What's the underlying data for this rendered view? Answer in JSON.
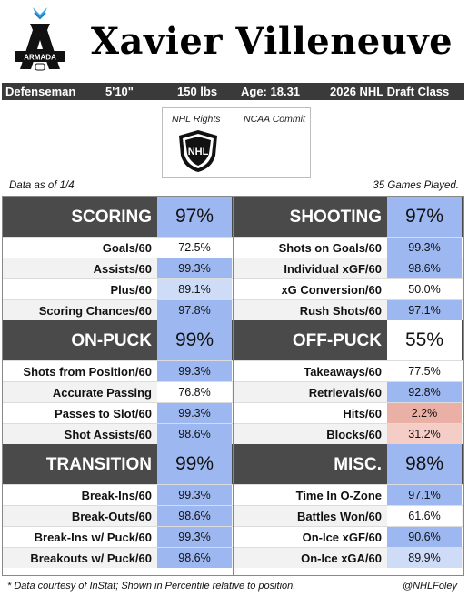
{
  "header": {
    "team_logo_text": "ARMADA",
    "player_name": "Xavier Villeneuve"
  },
  "info_bar": {
    "position": "Defenseman",
    "height": "5'10\"",
    "weight": "150 lbs",
    "age": "Age: 18.31",
    "draft_class": "2026 NHL Draft Class"
  },
  "rights": {
    "nhl_rights_label": "NHL Rights",
    "ncaa_commit_label": "NCAA Commit",
    "nhl_logo_text": "NHL"
  },
  "meta": {
    "data_as_of": "Data as of 1/4",
    "games_played": "35 Games Played."
  },
  "colors": {
    "strong_blue": "#9db7f0",
    "light_blue": "#cfdcf8",
    "white": "#ffffff",
    "pale_red": "#f5cdc7",
    "red": "#eab0a6",
    "header_dark": "#4a4a4a"
  },
  "sections": [
    {
      "title": "SCORING",
      "pct": "97%",
      "pct_level": 0.97,
      "rows": [
        {
          "label": "Goals/60",
          "value": "72.5%",
          "level": 0.725
        },
        {
          "label": "Assists/60",
          "value": "99.3%",
          "level": 0.993
        },
        {
          "label": "Plus/60",
          "value": "89.1%",
          "level": 0.891
        },
        {
          "label": "Scoring Chances/60",
          "value": "97.8%",
          "level": 0.978
        }
      ]
    },
    {
      "title": "SHOOTING",
      "pct": "97%",
      "pct_level": 0.97,
      "rows": [
        {
          "label": "Shots on Goals/60",
          "value": "99.3%",
          "level": 0.993
        },
        {
          "label": "Individual xGF/60",
          "value": "98.6%",
          "level": 0.986
        },
        {
          "label": "xG Conversion/60",
          "value": "50.0%",
          "level": 0.5
        },
        {
          "label": "Rush Shots/60",
          "value": "97.1%",
          "level": 0.971
        }
      ]
    },
    {
      "title": "ON-PUCK",
      "pct": "99%",
      "pct_level": 0.99,
      "rows": [
        {
          "label": "Shots from Position/60",
          "value": "99.3%",
          "level": 0.993
        },
        {
          "label": "Accurate Passing",
          "value": "76.8%",
          "level": 0.768
        },
        {
          "label": "Passes to Slot/60",
          "value": "99.3%",
          "level": 0.993
        },
        {
          "label": "Shot Assists/60",
          "value": "98.6%",
          "level": 0.986
        }
      ]
    },
    {
      "title": "OFF-PUCK",
      "pct": "55%",
      "pct_level": 0.55,
      "rows": [
        {
          "label": "Takeaways/60",
          "value": "77.5%",
          "level": 0.775
        },
        {
          "label": "Retrievals/60",
          "value": "92.8%",
          "level": 0.928
        },
        {
          "label": "Hits/60",
          "value": "2.2%",
          "level": 0.022
        },
        {
          "label": "Blocks/60",
          "value": "31.2%",
          "level": 0.312
        }
      ]
    },
    {
      "title": "TRANSITION",
      "pct": "99%",
      "pct_level": 0.99,
      "rows": [
        {
          "label": "Break-Ins/60",
          "value": "99.3%",
          "level": 0.993
        },
        {
          "label": "Break-Outs/60",
          "value": "98.6%",
          "level": 0.986
        },
        {
          "label": "Break-Ins w/ Puck/60",
          "value": "99.3%",
          "level": 0.993
        },
        {
          "label": "Breakouts w/ Puck/60",
          "value": "98.6%",
          "level": 0.986
        }
      ]
    },
    {
      "title": "MISC.",
      "pct": "98%",
      "pct_level": 0.98,
      "rows": [
        {
          "label": "Time In O-Zone",
          "value": "97.1%",
          "level": 0.971
        },
        {
          "label": "Battles Won/60",
          "value": "61.6%",
          "level": 0.616
        },
        {
          "label": "On-Ice xGF/60",
          "value": "90.6%",
          "level": 0.906
        },
        {
          "label": "On-Ice xGA/60",
          "value": "89.9%",
          "level": 0.899
        }
      ]
    }
  ],
  "footer": {
    "note": "* Data courtesy of InStat; Shown in Percentile relative to position.",
    "handle": "@NHLFoley"
  }
}
